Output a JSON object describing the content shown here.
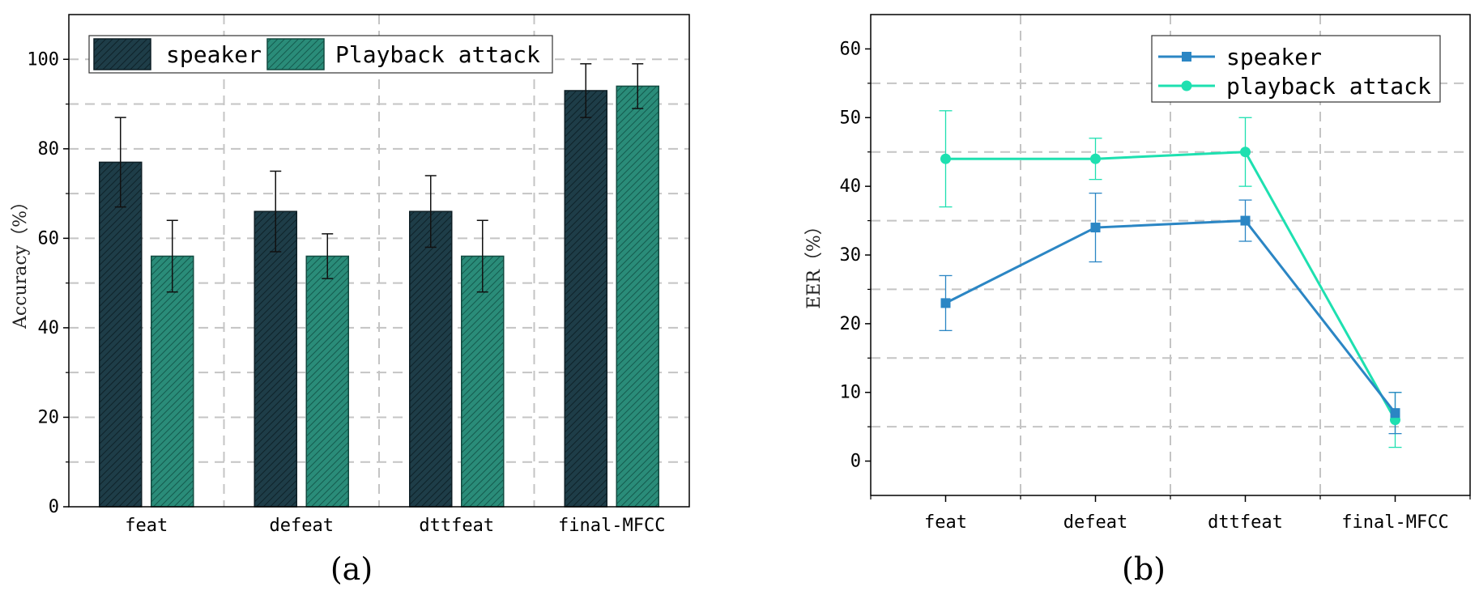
{
  "chart_data": [
    {
      "type": "bar",
      "panel_label": "(a)",
      "categories": [
        "feat",
        "defeat",
        "dttfeat",
        "final-MFCC"
      ],
      "ylabel": "Accuracy（%）",
      "xlabel": "",
      "ylim": [
        0,
        110
      ],
      "yticks": [
        "0",
        "20",
        "40",
        "60",
        "80",
        "100"
      ],
      "grid": true,
      "legend_position": "top-left",
      "series": [
        {
          "name": "speaker",
          "values": [
            77,
            66,
            66,
            93
          ],
          "errors": [
            10,
            9,
            8,
            6
          ],
          "color": "#1e3d48",
          "edge": "#0d1e25"
        },
        {
          "name": "Playback attack",
          "values": [
            56,
            56,
            56,
            94
          ],
          "errors": [
            8,
            5,
            8,
            5
          ],
          "color": "#2a8c79",
          "edge": "#124b41"
        }
      ]
    },
    {
      "type": "line",
      "panel_label": "(b)",
      "categories": [
        "feat",
        "defeat",
        "dttfeat",
        "final-MFCC"
      ],
      "ylabel": "EER（%）",
      "xlabel": "",
      "ylim": [
        -5,
        65
      ],
      "yticks": [
        "0",
        "10",
        "20",
        "30",
        "40",
        "50",
        "60"
      ],
      "grid": true,
      "legend_position": "top-right",
      "series": [
        {
          "name": "speaker",
          "values": [
            23,
            34,
            35,
            7
          ],
          "errors": [
            4,
            5,
            3,
            3
          ],
          "color": "#2b86c4",
          "marker": "square"
        },
        {
          "name": "playback attack",
          "values": [
            44,
            44,
            45,
            6
          ],
          "errors": [
            7,
            3,
            5,
            4
          ],
          "color": "#1ee0b0",
          "marker": "circle"
        }
      ]
    }
  ]
}
